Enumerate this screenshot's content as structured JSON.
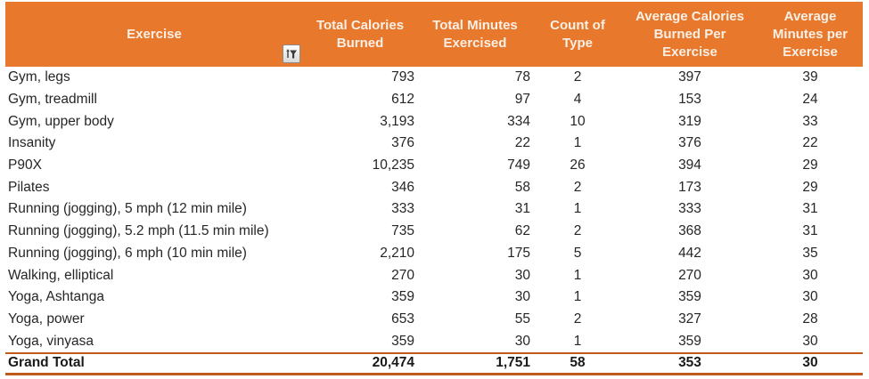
{
  "table": {
    "columns": [
      {
        "label": "Exercise"
      },
      {
        "label": "Total Calories Burned"
      },
      {
        "label": "Total Minutes Exercised"
      },
      {
        "label": "Count of Type"
      },
      {
        "label": "Average Calories Burned Per Exercise"
      },
      {
        "label": "Average Minutes per Exercise"
      }
    ],
    "rows": [
      [
        "Gym, legs",
        "793",
        "78",
        "2",
        "397",
        "39"
      ],
      [
        "Gym, treadmill",
        "612",
        "97",
        "4",
        "153",
        "24"
      ],
      [
        "Gym, upper body",
        "3,193",
        "334",
        "10",
        "319",
        "33"
      ],
      [
        "Insanity",
        "376",
        "22",
        "1",
        "376",
        "22"
      ],
      [
        "P90X",
        "10,235",
        "749",
        "26",
        "394",
        "29"
      ],
      [
        "Pilates",
        "346",
        "58",
        "2",
        "173",
        "29"
      ],
      [
        "Running (jogging), 5 mph (12 min mile)",
        "333",
        "31",
        "1",
        "333",
        "31"
      ],
      [
        "Running (jogging), 5.2 mph (11.5 min mile)",
        "735",
        "62",
        "2",
        "368",
        "31"
      ],
      [
        "Running (jogging), 6 mph (10 min mile)",
        "2,210",
        "175",
        "5",
        "442",
        "35"
      ],
      [
        "Walking, elliptical",
        "270",
        "30",
        "1",
        "270",
        "30"
      ],
      [
        "Yoga, Ashtanga",
        "359",
        "30",
        "1",
        "359",
        "30"
      ],
      [
        "Yoga, power",
        "653",
        "55",
        "2",
        "327",
        "28"
      ],
      [
        "Yoga, vinyasa",
        "359",
        "30",
        "1",
        "359",
        "30"
      ]
    ],
    "grand_total": [
      "Grand Total",
      "20,474",
      "1,751",
      "58",
      "353",
      "30"
    ],
    "icons": {
      "filter": "filter-funnel-icon"
    },
    "colors": {
      "header_bg": "#E8782C",
      "header_text": "#FAF0E6",
      "total_border": "#C25A1C",
      "body_text": "#262626"
    }
  }
}
